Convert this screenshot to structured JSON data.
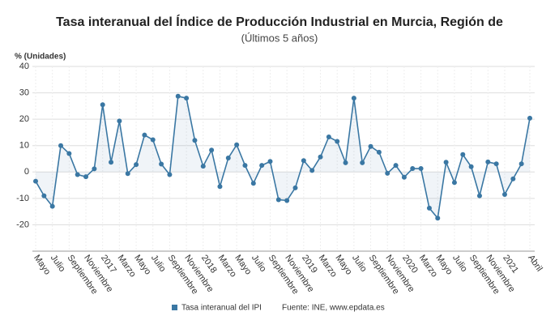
{
  "chart_data": {
    "type": "line",
    "title": "Tasa interanual del Índice de Producción Industrial en Murcia, Región de",
    "subtitle": "(Últimos 5 años)",
    "y_label": "% (Unidades)",
    "source": "Fuente: INE, www.epdata.es",
    "categories": [
      "Mayo",
      null,
      "Julio",
      null,
      "Septiembre",
      null,
      "Noviembre",
      null,
      "2017",
      null,
      "Marzo",
      null,
      "Mayo",
      null,
      "Julio",
      null,
      "Septiembre",
      null,
      "Noviembre",
      null,
      "2018",
      null,
      "Marzo",
      null,
      "Mayo",
      null,
      "Julio",
      null,
      "Septiembre",
      null,
      "Noviembre",
      null,
      "2019",
      null,
      "Marzo",
      null,
      "Mayo",
      null,
      "Julio",
      null,
      "Septiembre",
      null,
      "Noviembre",
      null,
      "2020",
      null,
      "Marzo",
      null,
      "Mayo",
      null,
      "Julio",
      null,
      "Septiembre",
      null,
      "Noviembre",
      null,
      "2021",
      null,
      null,
      "Abril"
    ],
    "series": [
      {
        "name": "Tasa interanual del IPI",
        "color": "#3a77a3",
        "values": [
          -3.5,
          -9,
          -13,
          10,
          7,
          -1,
          -1.8,
          1.2,
          25.5,
          3.7,
          19.3,
          -0.6,
          2.8,
          14,
          12.2,
          3,
          -1,
          28.7,
          28,
          12,
          2.2,
          8.3,
          -5.5,
          5.3,
          10.3,
          2.5,
          -4.3,
          2.5,
          4,
          -10.5,
          -10.8,
          -6,
          4.3,
          0.6,
          5.7,
          13.3,
          11.6,
          3.5,
          28,
          3.5,
          9.7,
          7.5,
          -0.5,
          2.5,
          -2,
          1.3,
          1.3,
          -13.7,
          -17.5,
          3.7,
          -4,
          6.6,
          2,
          -9,
          3.8,
          3.1,
          -8.5,
          -2.6,
          3.1,
          20.4
        ]
      }
    ],
    "ylim": [
      -30,
      40
    ],
    "yticks": [
      -20,
      -10,
      0,
      10,
      20,
      30,
      40
    ],
    "grid": true
  }
}
